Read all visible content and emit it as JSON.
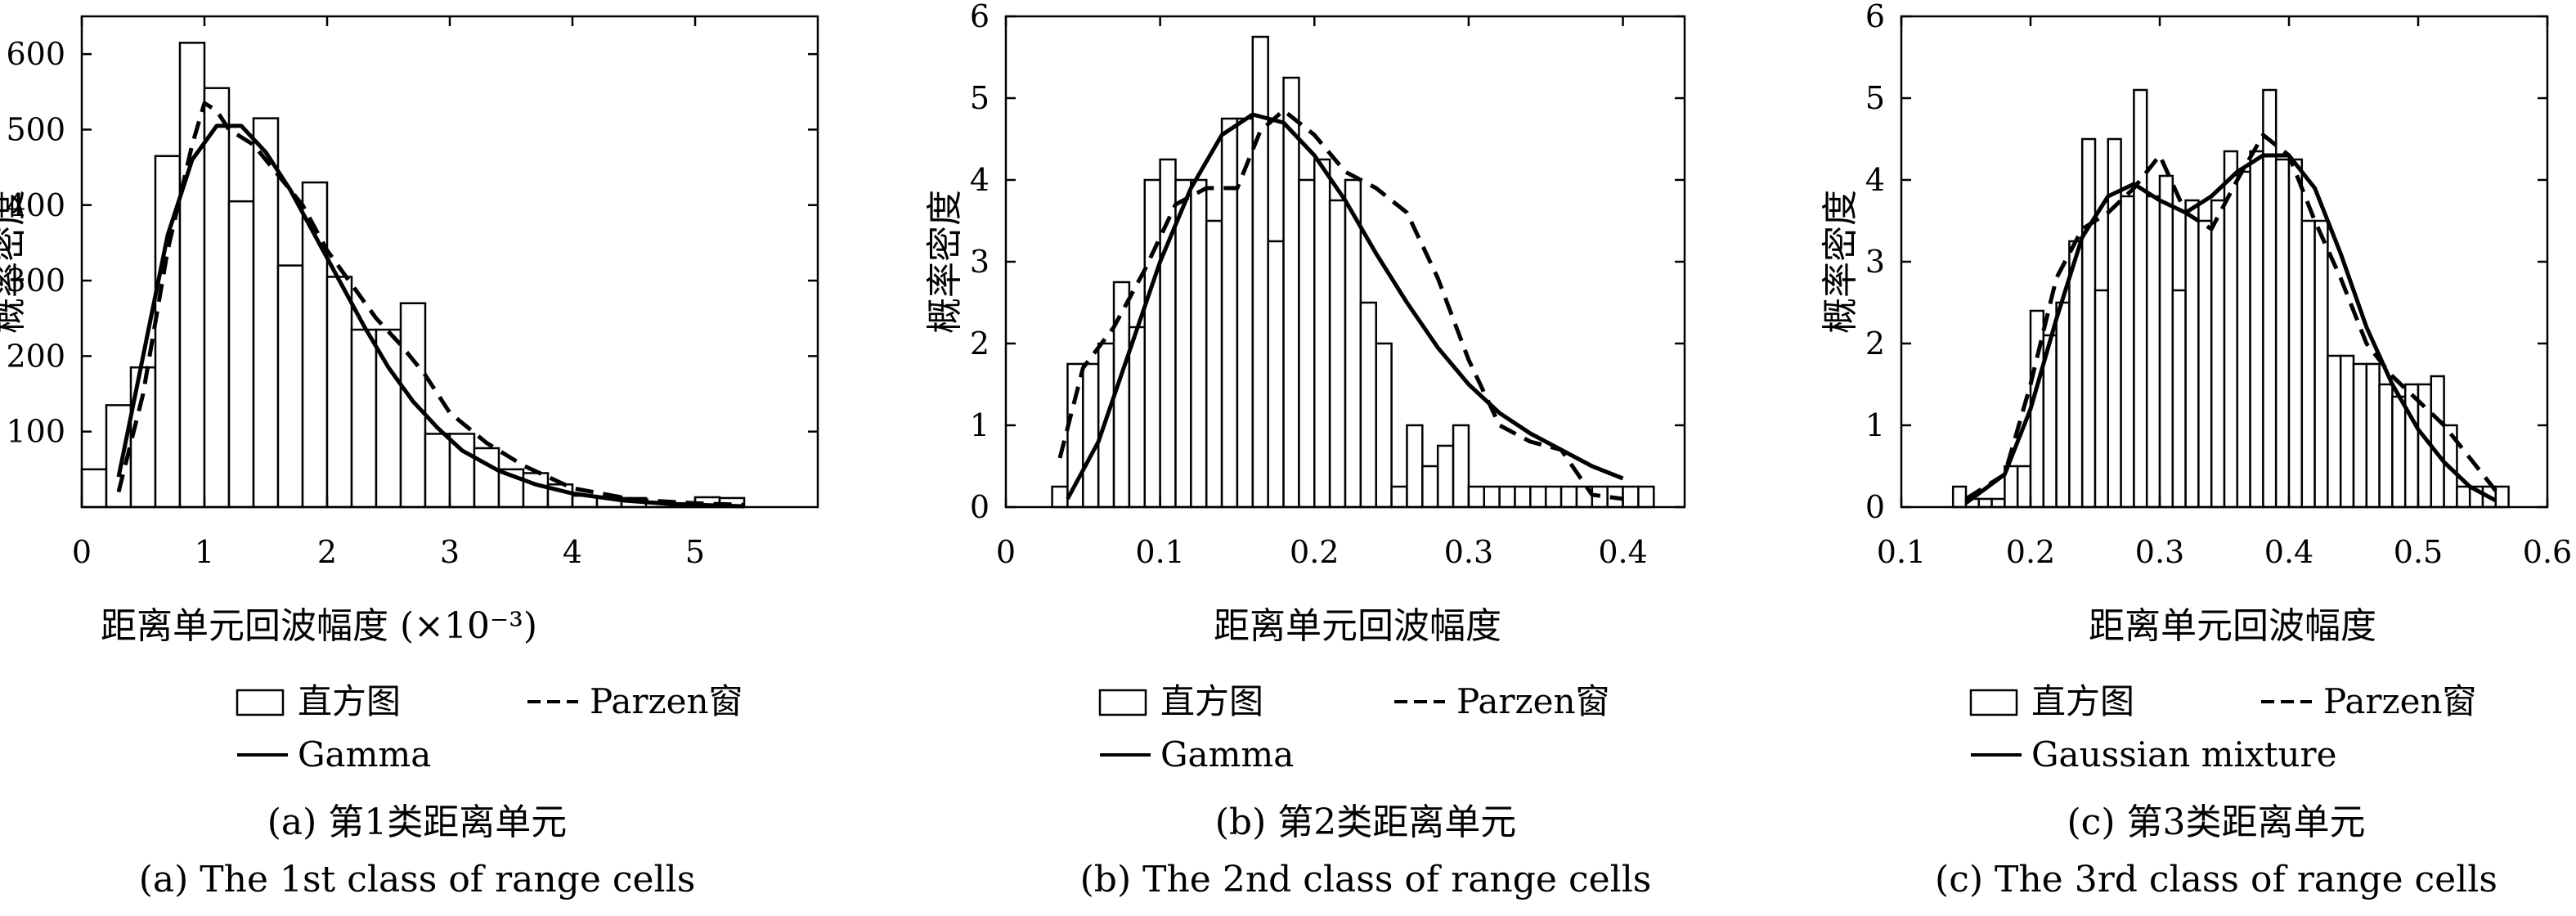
{
  "chart_data": [
    {
      "type": "bar",
      "ylabel": "概率密度",
      "xlabel": "距离单元回波幅度 (×10⁻³)",
      "xlim": [
        0,
        6
      ],
      "ylim": [
        0,
        650
      ],
      "xticks": [
        0,
        1,
        2,
        3,
        4,
        5
      ],
      "yticks": [
        100,
        200,
        300,
        400,
        500,
        600
      ],
      "bin_width": 0.2,
      "histogram": {
        "x": [
          0.1,
          0.3,
          0.5,
          0.7,
          0.9,
          1.1,
          1.3,
          1.5,
          1.7,
          1.9,
          2.1,
          2.3,
          2.5,
          2.7,
          2.9,
          3.1,
          3.3,
          3.5,
          3.7,
          3.9,
          4.1,
          4.3,
          4.5,
          4.7,
          4.9,
          5.1,
          5.3
        ],
        "values": [
          50,
          135,
          185,
          465,
          615,
          555,
          405,
          515,
          320,
          430,
          305,
          235,
          235,
          270,
          97,
          97,
          78,
          50,
          45,
          30,
          15,
          14,
          12,
          7,
          5,
          13,
          12
        ]
      },
      "series": [
        {
          "name": "Parzen窗",
          "style": "dashed",
          "x": [
            0.3,
            0.5,
            0.7,
            0.9,
            1.0,
            1.1,
            1.2,
            1.4,
            1.6,
            1.8,
            2.0,
            2.2,
            2.4,
            2.6,
            2.8,
            3.0,
            3.3,
            3.6,
            4.0,
            4.5,
            5.0,
            5.4
          ],
          "y": [
            20,
            150,
            340,
            480,
            535,
            525,
            500,
            480,
            440,
            400,
            340,
            295,
            250,
            215,
            175,
            125,
            85,
            55,
            25,
            10,
            5,
            3
          ]
        },
        {
          "name": "Gamma",
          "style": "solid",
          "x": [
            0.3,
            0.5,
            0.7,
            0.9,
            1.1,
            1.3,
            1.5,
            1.7,
            1.9,
            2.1,
            2.3,
            2.5,
            2.7,
            2.9,
            3.1,
            3.4,
            3.7,
            4.0,
            4.4,
            4.8,
            5.2,
            5.4
          ],
          "y": [
            40,
            200,
            360,
            460,
            505,
            505,
            470,
            420,
            360,
            300,
            240,
            185,
            140,
            105,
            75,
            48,
            30,
            18,
            9,
            4,
            2,
            1
          ]
        }
      ],
      "legend": [
        "直方图",
        "Parzen窗",
        "Gamma"
      ],
      "caption_zh": "(a) 第1类距离单元",
      "caption_en": "(a) The 1st class of range cells"
    },
    {
      "type": "bar",
      "ylabel": "概率密度",
      "xlabel": "距离单元回波幅度",
      "xlim": [
        0,
        0.44
      ],
      "ylim": [
        0,
        6
      ],
      "xticks": [
        0,
        0.1,
        0.2,
        0.3,
        0.4
      ],
      "yticks": [
        0,
        1,
        2,
        3,
        4,
        5,
        6
      ],
      "bin_width": 0.01,
      "histogram": {
        "x": [
          0.035,
          0.045,
          0.055,
          0.065,
          0.075,
          0.085,
          0.095,
          0.105,
          0.115,
          0.125,
          0.135,
          0.145,
          0.155,
          0.165,
          0.175,
          0.185,
          0.195,
          0.205,
          0.215,
          0.225,
          0.235,
          0.245,
          0.255,
          0.265,
          0.275,
          0.285,
          0.295,
          0.305,
          0.315,
          0.325,
          0.335,
          0.345,
          0.355,
          0.365,
          0.375,
          0.385,
          0.395,
          0.405,
          0.415
        ],
        "values": [
          0.25,
          1.75,
          1.75,
          2.0,
          2.75,
          2.2,
          4.0,
          4.25,
          4.0,
          4.0,
          3.5,
          4.75,
          4.75,
          5.75,
          3.25,
          5.25,
          4.0,
          4.25,
          3.75,
          4.0,
          2.5,
          2.0,
          0.25,
          1.0,
          0.5,
          0.75,
          1.0,
          0.25,
          0.25,
          0.25,
          0.25,
          0.25,
          0.25,
          0.25,
          0.25,
          0.25,
          0.25,
          0.25,
          0.25
        ]
      },
      "series": [
        {
          "name": "Parzen窗",
          "style": "dashed",
          "x": [
            0.035,
            0.05,
            0.07,
            0.09,
            0.11,
            0.13,
            0.15,
            0.165,
            0.18,
            0.2,
            0.22,
            0.24,
            0.26,
            0.28,
            0.3,
            0.32,
            0.34,
            0.36,
            0.38,
            0.4
          ],
          "y": [
            0.6,
            1.7,
            2.2,
            2.9,
            3.7,
            3.9,
            3.9,
            4.6,
            4.85,
            4.55,
            4.1,
            3.9,
            3.6,
            2.8,
            1.8,
            1.0,
            0.8,
            0.7,
            0.15,
            0.1
          ]
        },
        {
          "name": "Gamma",
          "style": "solid",
          "x": [
            0.04,
            0.06,
            0.08,
            0.1,
            0.12,
            0.14,
            0.16,
            0.18,
            0.2,
            0.22,
            0.24,
            0.26,
            0.28,
            0.3,
            0.32,
            0.34,
            0.36,
            0.38,
            0.4
          ],
          "y": [
            0.1,
            0.8,
            1.9,
            3.0,
            3.9,
            4.55,
            4.8,
            4.7,
            4.3,
            3.75,
            3.1,
            2.5,
            1.95,
            1.5,
            1.15,
            0.9,
            0.7,
            0.5,
            0.35
          ]
        }
      ],
      "legend": [
        "直方图",
        "Parzen窗",
        "Gamma"
      ],
      "caption_zh": "(b) 第2类距离单元",
      "caption_en": "(b) The 2nd class of range cells"
    },
    {
      "type": "bar",
      "ylabel": "概率密度",
      "xlabel": "距离单元回波幅度",
      "xlim": [
        0.1,
        0.6
      ],
      "ylim": [
        0,
        6
      ],
      "xticks": [
        0.1,
        0.2,
        0.3,
        0.4,
        0.5,
        0.6
      ],
      "yticks": [
        0,
        1,
        2,
        3,
        4,
        5,
        6
      ],
      "bin_width": 0.01,
      "histogram": {
        "x": [
          0.145,
          0.155,
          0.165,
          0.175,
          0.185,
          0.195,
          0.205,
          0.215,
          0.225,
          0.235,
          0.245,
          0.255,
          0.265,
          0.275,
          0.285,
          0.295,
          0.305,
          0.315,
          0.325,
          0.335,
          0.345,
          0.355,
          0.365,
          0.375,
          0.385,
          0.395,
          0.405,
          0.415,
          0.425,
          0.435,
          0.445,
          0.455,
          0.465,
          0.475,
          0.485,
          0.495,
          0.505,
          0.515,
          0.525,
          0.535,
          0.545,
          0.555,
          0.565
        ],
        "values": [
          0.25,
          0.1,
          0.1,
          0.1,
          0.5,
          0.5,
          2.4,
          2.1,
          2.5,
          3.25,
          4.5,
          2.65,
          4.5,
          3.8,
          5.1,
          3.8,
          4.05,
          2.65,
          3.75,
          3.5,
          3.75,
          4.35,
          4.1,
          4.35,
          5.1,
          4.25,
          4.25,
          3.5,
          3.5,
          1.85,
          1.85,
          1.75,
          1.75,
          1.5,
          1.35,
          1.5,
          1.5,
          1.6,
          1.0,
          0.25,
          0.25,
          0.25,
          0.25
        ]
      },
      "series": [
        {
          "name": "Parzen窗",
          "style": "dashed",
          "x": [
            0.15,
            0.18,
            0.2,
            0.22,
            0.24,
            0.26,
            0.28,
            0.3,
            0.32,
            0.34,
            0.36,
            0.38,
            0.4,
            0.42,
            0.44,
            0.46,
            0.48,
            0.5,
            0.52,
            0.54,
            0.56
          ],
          "y": [
            0.1,
            0.4,
            1.5,
            2.8,
            3.4,
            3.6,
            3.9,
            4.3,
            3.6,
            3.4,
            4.0,
            4.55,
            4.3,
            3.5,
            2.8,
            2.0,
            1.6,
            1.3,
            1.0,
            0.6,
            0.2
          ]
        },
        {
          "name": "Gaussian mixture",
          "style": "solid",
          "x": [
            0.15,
            0.18,
            0.2,
            0.22,
            0.24,
            0.26,
            0.28,
            0.3,
            0.32,
            0.34,
            0.36,
            0.38,
            0.4,
            0.42,
            0.44,
            0.46,
            0.48,
            0.5,
            0.52,
            0.54,
            0.56
          ],
          "y": [
            0.05,
            0.4,
            1.2,
            2.3,
            3.3,
            3.8,
            3.95,
            3.75,
            3.6,
            3.8,
            4.1,
            4.3,
            4.3,
            3.9,
            3.1,
            2.2,
            1.5,
            0.95,
            0.55,
            0.25,
            0.08
          ]
        }
      ],
      "legend": [
        "直方图",
        "Parzen窗",
        "Gaussian mixture"
      ],
      "caption_zh": "(c) 第3类距离单元",
      "caption_en": "(c) The 3rd class of range cells"
    }
  ]
}
